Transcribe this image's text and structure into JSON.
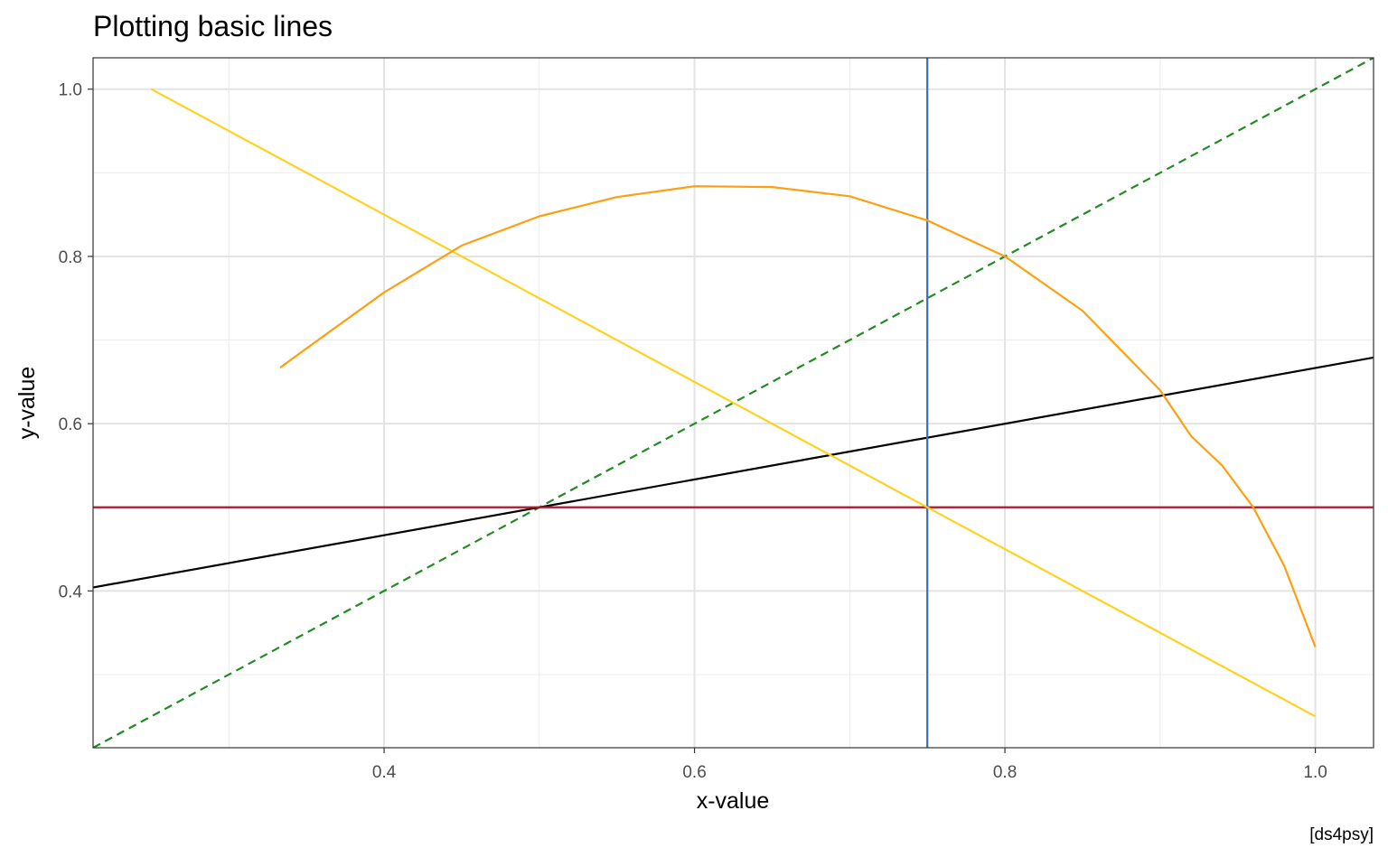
{
  "chart_data": {
    "type": "line",
    "title": "Plotting basic lines",
    "xlabel": "x-value",
    "ylabel": "y-value",
    "caption": "[ds4psy]",
    "xlim": [
      0.2125,
      1.0375
    ],
    "ylim": [
      0.2125,
      1.0375
    ],
    "x_ticks": [
      0.4,
      0.6,
      0.8,
      1.0
    ],
    "x_tick_labels": [
      "0.4",
      "0.6",
      "0.8",
      "1.0"
    ],
    "y_ticks": [
      0.4,
      0.6,
      0.8,
      1.0
    ],
    "y_tick_labels": [
      "0.4",
      "0.6",
      "0.8",
      "1.0"
    ],
    "x_minor": [
      0.3,
      0.5,
      0.7,
      0.9
    ],
    "y_minor": [
      0.3,
      0.5,
      0.7,
      0.9
    ],
    "grid": true,
    "series": [
      {
        "kind": "abline",
        "slope": 1,
        "intercept": 0,
        "color": "#228b22",
        "dash": true
      },
      {
        "kind": "abline",
        "slope": 0.3333,
        "intercept": 0.3333,
        "color": "#000000",
        "dash": false
      },
      {
        "kind": "hline",
        "y": 0.5,
        "color": "#b2182b",
        "dash": false
      },
      {
        "kind": "vline",
        "x": 0.75,
        "color": "#3a6fb0",
        "dash": false
      },
      {
        "kind": "path",
        "color": "#ffd21f",
        "dash": false,
        "x": [
          0.25,
          0.75,
          1.0
        ],
        "y": [
          1.0,
          0.5,
          0.25
        ]
      },
      {
        "kind": "path",
        "color": "#ff9f0f",
        "dash": false,
        "x": [
          0.333,
          0.35,
          0.4,
          0.45,
          0.5,
          0.55,
          0.6,
          0.65,
          0.7,
          0.75,
          0.8,
          0.85,
          0.9,
          0.92,
          0.94,
          0.96,
          0.98,
          1.0
        ],
        "y": [
          0.667,
          0.69,
          0.757,
          0.813,
          0.848,
          0.871,
          0.884,
          0.883,
          0.872,
          0.843,
          0.8,
          0.735,
          0.64,
          0.585,
          0.55,
          0.5,
          0.43,
          0.333
        ]
      }
    ]
  }
}
